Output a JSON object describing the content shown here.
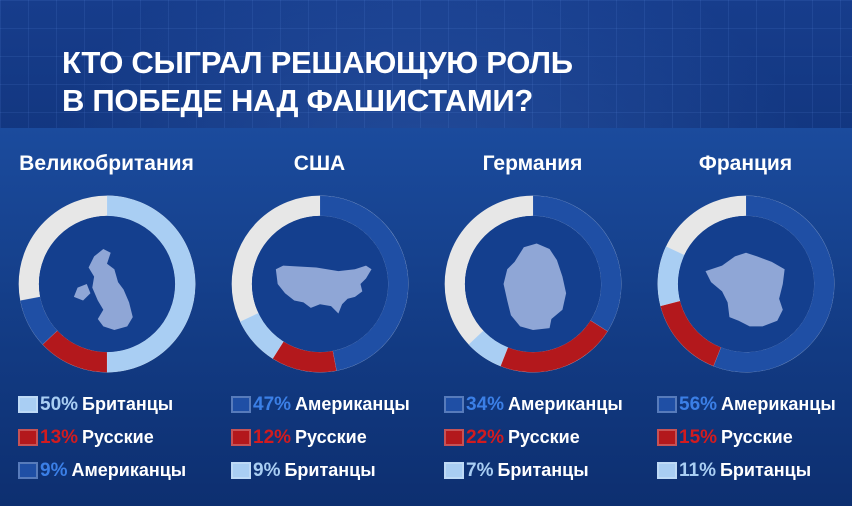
{
  "title": {
    "line1": "КТО СЫГРАЛ РЕШАЮЩУЮ РОЛЬ",
    "line2": "В ПОБЕДЕ НАД ФАШИСТАМИ?"
  },
  "colors": {
    "british": "#a9cef3",
    "russian": "#b3181c",
    "american_dark": "#1f4fa5",
    "rest": "#e7e7e7",
    "inner": "#143f8e",
    "map": "#8fa6d6",
    "pct_light": "#a9cef3",
    "pct_red": "#d21b1f",
    "pct_blue": "#3b7fe6"
  },
  "chart_data": [
    {
      "type": "pie",
      "title": "Великобритания",
      "map_icon": "uk-map-icon",
      "slices": [
        {
          "label": "Британцы",
          "value": 50,
          "pct_text": "50%",
          "kind": "british"
        },
        {
          "label": "Русские",
          "value": 13,
          "pct_text": "13%",
          "kind": "russian"
        },
        {
          "label": "Американцы",
          "value": 9,
          "pct_text": "9%",
          "kind": "american"
        }
      ]
    },
    {
      "type": "pie",
      "title": "США",
      "map_icon": "usa-map-icon",
      "slices": [
        {
          "label": "Американцы",
          "value": 47,
          "pct_text": "47%",
          "kind": "american"
        },
        {
          "label": "Русские",
          "value": 12,
          "pct_text": "12%",
          "kind": "russian"
        },
        {
          "label": "Британцы",
          "value": 9,
          "pct_text": "9%",
          "kind": "british"
        }
      ]
    },
    {
      "type": "pie",
      "title": "Германия",
      "map_icon": "germany-map-icon",
      "slices": [
        {
          "label": "Американцы",
          "value": 34,
          "pct_text": "34%",
          "kind": "american"
        },
        {
          "label": "Русские",
          "value": 22,
          "pct_text": "22%",
          "kind": "russian"
        },
        {
          "label": "Британцы",
          "value": 7,
          "pct_text": "7%",
          "kind": "british"
        }
      ]
    },
    {
      "type": "pie",
      "title": "Франция",
      "map_icon": "france-map-icon",
      "slices": [
        {
          "label": "Американцы",
          "value": 56,
          "pct_text": "56%",
          "kind": "american"
        },
        {
          "label": "Русские",
          "value": 15,
          "pct_text": "15%",
          "kind": "russian"
        },
        {
          "label": "Британцы",
          "value": 11,
          "pct_text": "11%",
          "kind": "british"
        }
      ]
    }
  ]
}
